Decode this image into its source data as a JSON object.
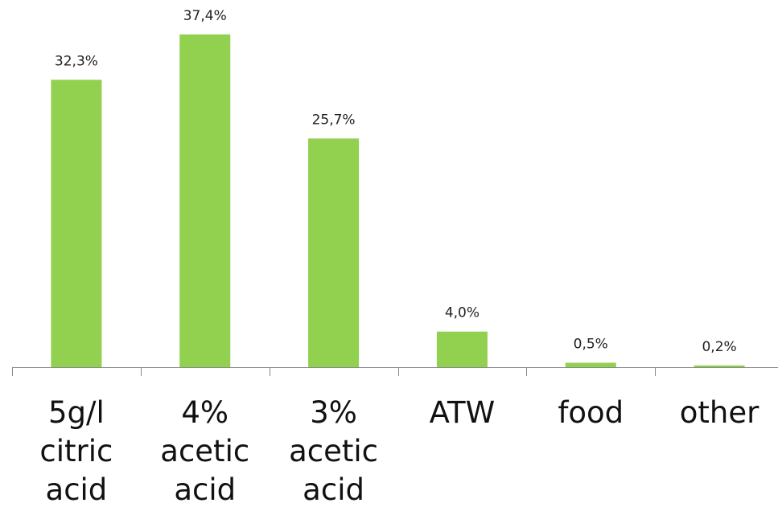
{
  "chart_data": {
    "type": "bar",
    "categories": [
      [
        "5g/l",
        "citric",
        "acid"
      ],
      [
        "4%",
        "acetic",
        "acid"
      ],
      [
        "3%",
        "acetic",
        "acid"
      ],
      [
        "ATW"
      ],
      [
        "food"
      ],
      [
        "other"
      ]
    ],
    "values": [
      32.3,
      37.4,
      25.7,
      4.0,
      0.5,
      0.2
    ],
    "data_labels": [
      "32,3%",
      "37,4%",
      "25,7%",
      "4,0%",
      "0,5%",
      "0,2%"
    ],
    "ylim": [
      0,
      40
    ],
    "grid": false,
    "colors": {
      "bar": "#92d050",
      "axis": "#888888"
    }
  }
}
